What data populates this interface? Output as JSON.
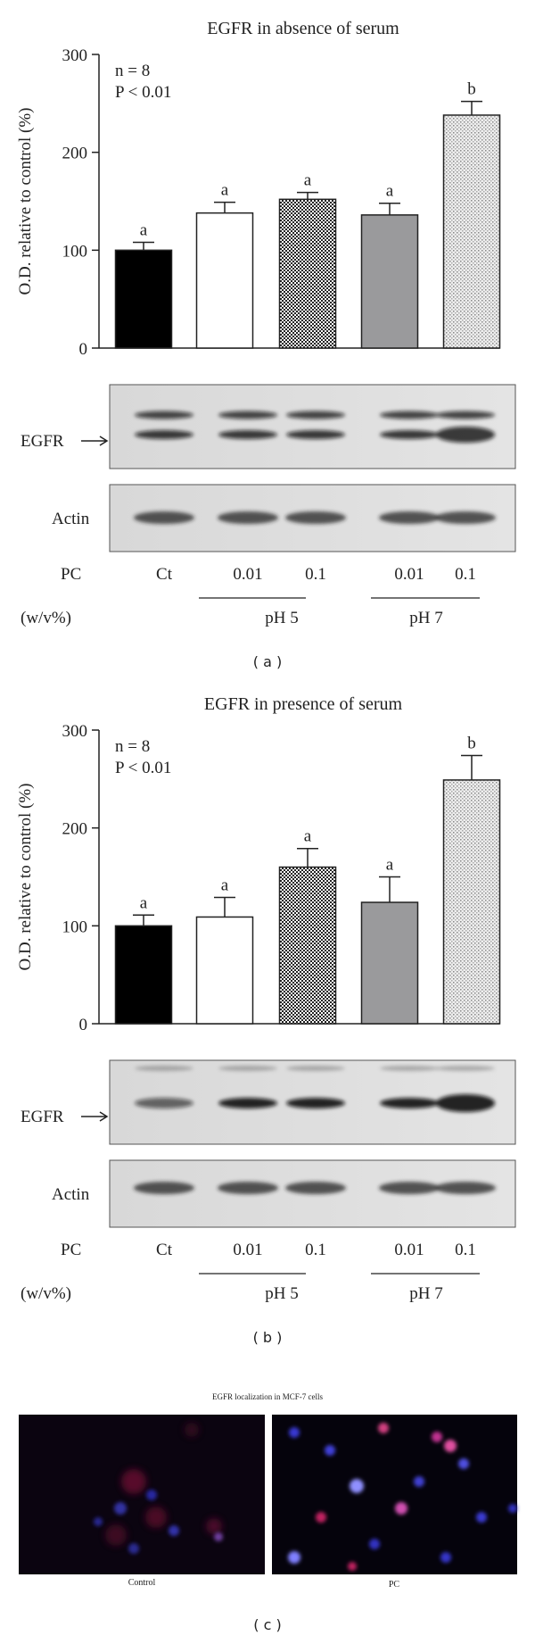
{
  "chart_data": [
    {
      "type": "bar",
      "title": "EGFR in absence of serum",
      "ylabel": "O.D. relative to control (%)",
      "annotations": [
        "n = 8",
        "P < 0.01"
      ],
      "categories": [
        "Ct",
        "0.01",
        "0.1",
        "0.01",
        "0.1"
      ],
      "groups": [
        "pH 5",
        "pH 7"
      ],
      "values": [
        100,
        138,
        152,
        136,
        238
      ],
      "errors": [
        8,
        11,
        7,
        12,
        14
      ],
      "significance": [
        "a",
        "a",
        "a",
        "a",
        "b"
      ],
      "fills": [
        "#000000",
        "#ffffff",
        "checker",
        "#9a9a9c",
        "dots"
      ],
      "ylim": [
        0,
        300
      ],
      "yticks": [
        0,
        100,
        200,
        300
      ]
    },
    {
      "type": "bar",
      "title": "EGFR in presence of serum",
      "ylabel": "O.D. relative to control (%)",
      "annotations": [
        "n = 8",
        "P < 0.01"
      ],
      "categories": [
        "Ct",
        "0.01",
        "0.1",
        "0.01",
        "0.1"
      ],
      "groups": [
        "pH 5",
        "pH 7"
      ],
      "values": [
        100,
        109,
        160,
        124,
        249
      ],
      "errors": [
        11,
        20,
        19,
        26,
        25
      ],
      "significance": [
        "a",
        "a",
        "a",
        "a",
        "b"
      ],
      "fills": [
        "#000000",
        "#ffffff",
        "checker",
        "#9a9a9c",
        "dots"
      ],
      "ylim": [
        0,
        300
      ],
      "yticks": [
        0,
        100,
        200,
        300
      ]
    }
  ],
  "panels": [
    {
      "label": "( a )",
      "blot_labels": [
        "EGFR",
        "Actin"
      ],
      "row_labels": [
        "PC",
        "(w/v%)"
      ]
    },
    {
      "label": "( b )",
      "blot_labels": [
        "EGFR",
        "Actin"
      ],
      "row_labels": [
        "PC",
        "(w/v%)"
      ]
    }
  ],
  "panel_c": {
    "title": "EGFR localization in MCF-7 cells",
    "captions": [
      "Control",
      "PC"
    ],
    "label": "( c )"
  }
}
